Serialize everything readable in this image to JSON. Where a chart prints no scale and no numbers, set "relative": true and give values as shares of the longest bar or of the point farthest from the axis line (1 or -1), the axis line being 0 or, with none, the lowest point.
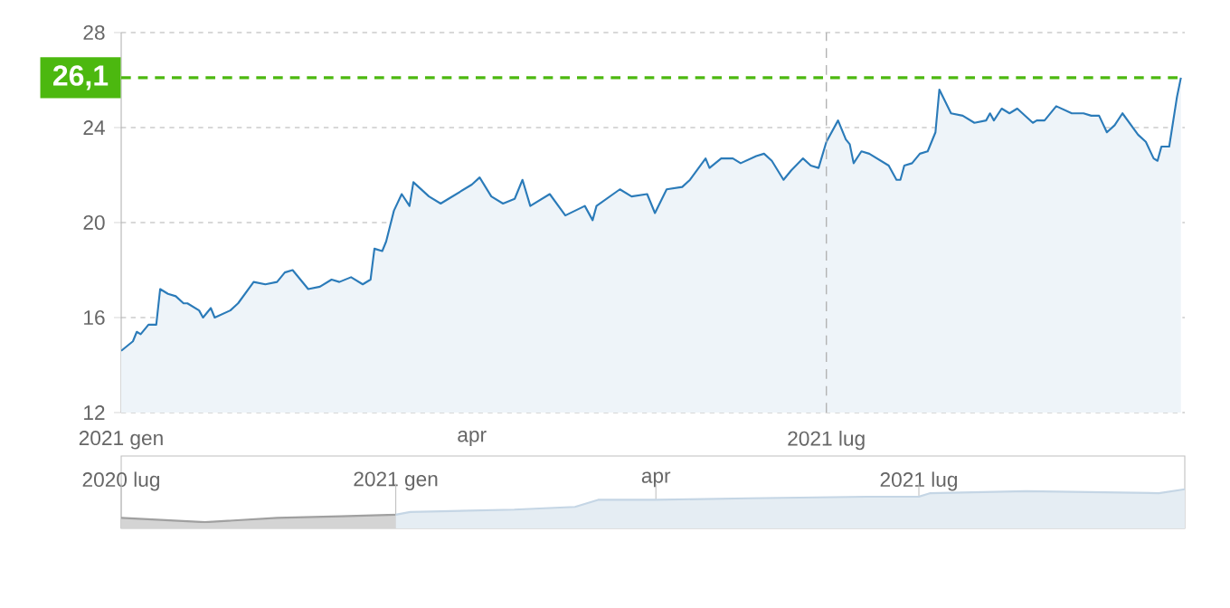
{
  "chart_data": [
    {
      "type": "area",
      "color": "#2b7bb9",
      "x": [
        "2021-01-01",
        "2021-01-04",
        "2021-01-05",
        "2021-01-06",
        "2021-01-08",
        "2021-01-10",
        "2021-01-11",
        "2021-01-13",
        "2021-01-15",
        "2021-01-17",
        "2021-01-18",
        "2021-01-21",
        "2021-01-22",
        "2021-01-24",
        "2021-01-25",
        "2021-01-29",
        "2021-01-31",
        "2021-02-04",
        "2021-02-07",
        "2021-02-10",
        "2021-02-12",
        "2021-02-14",
        "2021-02-18",
        "2021-02-21",
        "2021-02-24",
        "2021-02-26",
        "2021-03-01",
        "2021-03-04",
        "2021-03-06",
        "2021-03-07",
        "2021-03-09",
        "2021-03-10",
        "2021-03-12",
        "2021-03-14",
        "2021-03-16",
        "2021-03-17",
        "2021-03-21",
        "2021-03-24",
        "2021-03-26",
        "2021-04-01",
        "2021-04-03",
        "2021-04-06",
        "2021-04-09",
        "2021-04-12",
        "2021-04-14",
        "2021-04-16",
        "2021-04-21",
        "2021-04-25",
        "2021-04-30",
        "2021-05-02",
        "2021-05-03",
        "2021-05-09",
        "2021-05-12",
        "2021-05-16",
        "2021-05-18",
        "2021-05-21",
        "2021-05-25",
        "2021-05-27",
        "2021-05-31",
        "2021-06-01",
        "2021-06-04",
        "2021-06-07",
        "2021-06-09",
        "2021-06-13",
        "2021-06-15",
        "2021-06-17",
        "2021-06-20",
        "2021-06-22",
        "2021-06-25",
        "2021-06-27",
        "2021-06-29",
        "2021-07-01",
        "2021-07-04",
        "2021-07-06",
        "2021-07-07",
        "2021-07-08",
        "2021-07-10",
        "2021-07-12",
        "2021-07-14",
        "2021-07-17",
        "2021-07-19",
        "2021-07-20",
        "2021-07-21",
        "2021-07-23",
        "2021-07-25",
        "2021-07-27",
        "2021-07-29",
        "2021-07-30",
        "2021-08-02",
        "2021-08-05",
        "2021-08-08",
        "2021-08-11",
        "2021-08-12",
        "2021-08-13",
        "2021-08-15",
        "2021-08-17",
        "2021-08-19",
        "2021-08-23",
        "2021-08-24",
        "2021-08-26",
        "2021-08-29",
        "2021-09-02",
        "2021-09-05",
        "2021-09-07",
        "2021-09-09",
        "2021-09-11",
        "2021-09-13",
        "2021-09-15",
        "2021-09-19",
        "2021-09-21",
        "2021-09-23",
        "2021-09-24",
        "2021-09-25",
        "2021-09-27",
        "2021-09-29",
        "2021-09-30"
      ],
      "values": [
        14.6,
        15.0,
        15.4,
        15.3,
        15.7,
        15.7,
        17.2,
        17.0,
        16.9,
        16.6,
        16.6,
        16.3,
        16.0,
        16.4,
        16.0,
        16.3,
        16.6,
        17.5,
        17.4,
        17.5,
        17.9,
        18.0,
        17.2,
        17.3,
        17.6,
        17.5,
        17.7,
        17.4,
        17.6,
        18.9,
        18.8,
        19.2,
        20.5,
        21.2,
        20.7,
        21.7,
        21.1,
        20.8,
        21.0,
        21.6,
        21.9,
        21.1,
        20.8,
        21.0,
        21.8,
        20.7,
        21.2,
        20.3,
        20.7,
        20.1,
        20.7,
        21.4,
        21.1,
        21.2,
        20.4,
        21.4,
        21.5,
        21.8,
        22.7,
        22.3,
        22.7,
        22.7,
        22.5,
        22.8,
        22.9,
        22.6,
        21.8,
        22.2,
        22.7,
        22.4,
        22.3,
        23.4,
        24.3,
        23.5,
        23.3,
        22.5,
        23.0,
        22.9,
        22.7,
        22.4,
        21.8,
        21.8,
        22.4,
        22.5,
        22.9,
        23.0,
        23.8,
        25.6,
        24.6,
        24.5,
        24.2,
        24.3,
        24.6,
        24.3,
        24.8,
        24.6,
        24.8,
        24.2,
        24.3,
        24.3,
        24.9,
        24.6,
        24.6,
        24.5,
        24.5,
        23.8,
        24.1,
        24.6,
        23.7,
        23.4,
        22.7,
        22.6,
        23.2,
        23.2,
        25.3,
        26.1
      ],
      "xlim": [
        "2021-01-01",
        "2021-10-01"
      ],
      "xticks": [
        {
          "value": "2021-01-01",
          "label": "2021 gen"
        },
        {
          "value": "2021-04-01",
          "label": "apr"
        },
        {
          "value": "2021-07-01",
          "label": "2021 lug"
        }
      ],
      "ylim": [
        12,
        28
      ],
      "yticks": [
        12,
        16,
        20,
        24,
        28
      ],
      "grid": "y",
      "ref_lines": [
        {
          "axis": "y",
          "value": 26.1,
          "label": "26,1",
          "color": "#4cb80f",
          "line_style": "dashed"
        },
        {
          "axis": "x",
          "value": "2021-07-01",
          "color": "#b0b0b0",
          "line_style": "dashed"
        }
      ]
    },
    {
      "type": "area",
      "relative": true,
      "tick_labels": "x",
      "grid": "x",
      "series": [
        {
          "color": "#a0a0a0",
          "x": [
            "2020-09-28",
            "2020-10-27",
            "2020-11-21",
            "2020-12-13",
            "2021-01-01"
          ],
          "values": [
            0.27,
            0.16,
            0.27,
            0.31,
            0.35
          ]
        },
        {
          "color": "#c5d6e5",
          "x": [
            "2021-01-01",
            "2021-01-06",
            "2021-02-11",
            "2021-03-04",
            "2021-03-12",
            "2021-04-01",
            "2021-05-03",
            "2021-06-13",
            "2021-07-01",
            "2021-07-05",
            "2021-08-07",
            "2021-09-22",
            "2021-10-01"
          ],
          "values": [
            0.35,
            0.42,
            0.48,
            0.55,
            0.73,
            0.73,
            0.77,
            0.81,
            0.81,
            0.9,
            0.95,
            0.9,
            1
          ]
        }
      ],
      "xlim": [
        "2020-09-28",
        "2021-10-01"
      ],
      "xticks": [
        {
          "value": "2020-09-28",
          "label": "2020 lug"
        },
        {
          "value": "2021-01-01",
          "label": "2021 gen"
        },
        {
          "value": "2021-04-01",
          "label": "apr"
        },
        {
          "value": "2021-07-01",
          "label": "2021 lug"
        }
      ]
    }
  ]
}
